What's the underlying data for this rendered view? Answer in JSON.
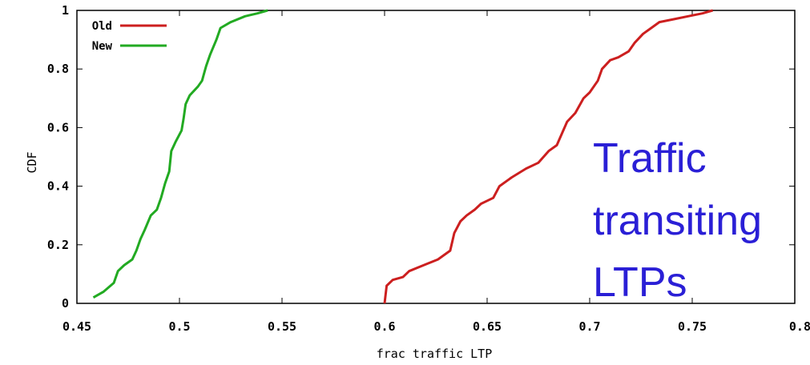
{
  "chart_data": {
    "type": "line",
    "title": "",
    "xlabel": "frac traffic LTP",
    "ylabel": "CDF",
    "xlim": [
      0.45,
      0.8
    ],
    "ylim": [
      0,
      1
    ],
    "x_ticks": [
      0.45,
      0.5,
      0.55,
      0.6,
      0.65,
      0.7,
      0.75,
      0.8
    ],
    "x_tick_labels": [
      "0.45",
      "0.5",
      "0.55",
      "0.6",
      "0.65",
      "0.7",
      "0.75",
      "0.8"
    ],
    "y_ticks": [
      0,
      0.2,
      0.4,
      0.6,
      0.8,
      1
    ],
    "y_tick_labels": [
      "0",
      "0.2",
      "0.4",
      "0.6",
      "0.8",
      "1"
    ],
    "grid": false,
    "legend": "top-left",
    "series": [
      {
        "name": "Old",
        "color": "#cc1f1f",
        "points": [
          [
            0.6,
            0.0
          ],
          [
            0.601,
            0.06
          ],
          [
            0.604,
            0.08
          ],
          [
            0.609,
            0.09
          ],
          [
            0.612,
            0.11
          ],
          [
            0.619,
            0.13
          ],
          [
            0.626,
            0.15
          ],
          [
            0.632,
            0.18
          ],
          [
            0.634,
            0.24
          ],
          [
            0.637,
            0.28
          ],
          [
            0.64,
            0.3
          ],
          [
            0.644,
            0.32
          ],
          [
            0.647,
            0.34
          ],
          [
            0.653,
            0.36
          ],
          [
            0.656,
            0.4
          ],
          [
            0.662,
            0.43
          ],
          [
            0.669,
            0.46
          ],
          [
            0.675,
            0.48
          ],
          [
            0.68,
            0.52
          ],
          [
            0.684,
            0.54
          ],
          [
            0.689,
            0.62
          ],
          [
            0.693,
            0.65
          ],
          [
            0.697,
            0.7
          ],
          [
            0.7,
            0.72
          ],
          [
            0.704,
            0.76
          ],
          [
            0.706,
            0.8
          ],
          [
            0.71,
            0.83
          ],
          [
            0.714,
            0.84
          ],
          [
            0.719,
            0.86
          ],
          [
            0.722,
            0.89
          ],
          [
            0.726,
            0.92
          ],
          [
            0.73,
            0.94
          ],
          [
            0.734,
            0.96
          ],
          [
            0.741,
            0.97
          ],
          [
            0.748,
            0.98
          ],
          [
            0.755,
            0.99
          ],
          [
            0.76,
            1.0
          ]
        ]
      },
      {
        "name": "New",
        "color": "#22aa22",
        "points": [
          [
            0.458,
            0.02
          ],
          [
            0.463,
            0.04
          ],
          [
            0.468,
            0.07
          ],
          [
            0.47,
            0.11
          ],
          [
            0.473,
            0.13
          ],
          [
            0.477,
            0.15
          ],
          [
            0.479,
            0.18
          ],
          [
            0.481,
            0.22
          ],
          [
            0.483,
            0.25
          ],
          [
            0.486,
            0.3
          ],
          [
            0.489,
            0.32
          ],
          [
            0.491,
            0.36
          ],
          [
            0.493,
            0.41
          ],
          [
            0.495,
            0.45
          ],
          [
            0.496,
            0.52
          ],
          [
            0.498,
            0.55
          ],
          [
            0.501,
            0.59
          ],
          [
            0.502,
            0.63
          ],
          [
            0.503,
            0.68
          ],
          [
            0.505,
            0.71
          ],
          [
            0.509,
            0.74
          ],
          [
            0.511,
            0.76
          ],
          [
            0.513,
            0.81
          ],
          [
            0.515,
            0.85
          ],
          [
            0.518,
            0.9
          ],
          [
            0.52,
            0.94
          ],
          [
            0.525,
            0.96
          ],
          [
            0.532,
            0.98
          ],
          [
            0.538,
            0.99
          ],
          [
            0.543,
            1.0
          ]
        ]
      }
    ],
    "annotation": {
      "lines": [
        "Traffic",
        "transiting",
        "LTPs"
      ],
      "color": "#2a1fd6"
    }
  }
}
